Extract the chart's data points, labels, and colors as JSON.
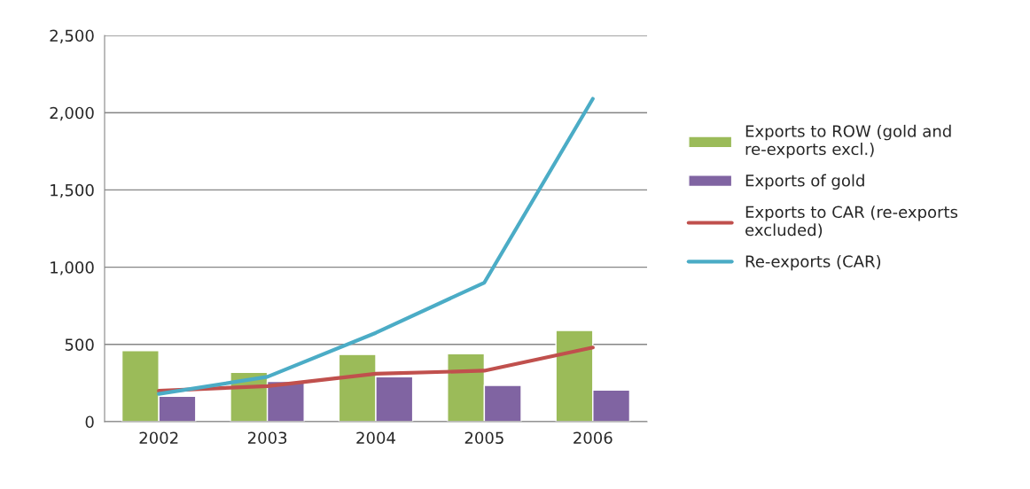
{
  "chart_data": {
    "type": "bar",
    "categories": [
      "2002",
      "2003",
      "2004",
      "2005",
      "2006"
    ],
    "series": [
      {
        "name": "Exports to ROW (gold and re-exports excl.)",
        "color": "#9bbb59",
        "values": [
          460,
          320,
          435,
          440,
          590
        ]
      },
      {
        "name": "Exports of gold",
        "color": "#8064a2",
        "values": [
          165,
          260,
          290,
          235,
          205
        ]
      },
      {
        "name": "Exports to CAR (re-exports excluded)",
        "color": "#c0504d",
        "type": "line",
        "values": [
          200,
          230,
          310,
          330,
          480
        ]
      },
      {
        "name": "Re-exports (CAR)",
        "color": "#4bacc6",
        "type": "line",
        "values": [
          180,
          290,
          575,
          900,
          2090
        ]
      }
    ],
    "ylim": [
      0,
      2500
    ],
    "yticks": [
      0,
      {
        "value": 500,
        "label": "500"
      },
      {
        "value": 1000,
        "label": "1,000"
      },
      {
        "value": 1500,
        "label": "1,500"
      },
      {
        "value": 2000,
        "label": "2,000"
      },
      {
        "value": 2500,
        "label": "2,500"
      }
    ],
    "grid": "y",
    "legend": "right",
    "marker": "none",
    "line_style": "solid"
  }
}
